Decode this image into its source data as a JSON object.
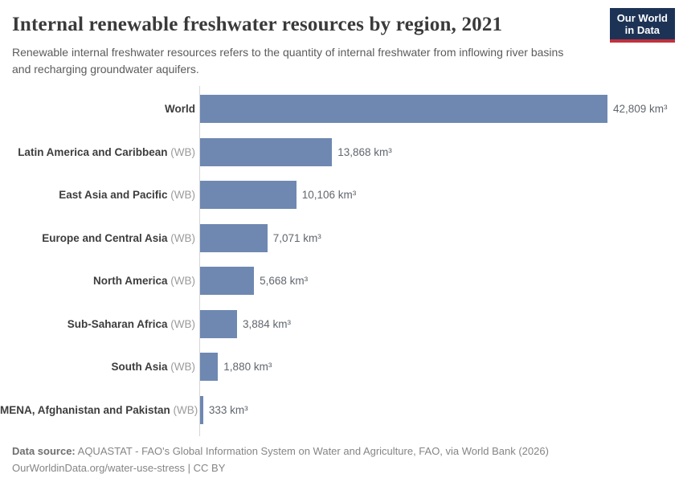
{
  "header": {
    "title": "Internal renewable freshwater resources by region, 2021",
    "subtitle": "Renewable internal freshwater resources refers to the quantity of internal freshwater from inflowing river basins and recharging groundwater aquifers.",
    "logo": {
      "line1": "Our World",
      "line2": "in Data"
    }
  },
  "chart_data": {
    "type": "bar",
    "orientation": "horizontal",
    "title": "Internal renewable freshwater resources by region, 2021",
    "unit": "km³",
    "categories": [
      "World",
      "Latin America and Caribbean",
      "East Asia and Pacific",
      "Europe and Central Asia",
      "North America",
      "Sub-Saharan Africa",
      "South Asia",
      "MENA, Afghanistan and Pakistan"
    ],
    "category_suffixes": [
      "",
      " (WB)",
      " (WB)",
      " (WB)",
      " (WB)",
      " (WB)",
      " (WB)",
      " (WB)"
    ],
    "values": [
      42809,
      13868,
      10106,
      7071,
      5668,
      3884,
      1880,
      333
    ],
    "value_labels": [
      "42,809 km³",
      "13,868 km³",
      "10,106 km³",
      "7,071 km³",
      "5,668 km³",
      "3,884 km³",
      "1,880 km³",
      "333 km³"
    ],
    "xlim": [
      0,
      42809
    ],
    "grid": false,
    "legend": false
  },
  "footer": {
    "source_label": "Data source:",
    "source_text": " AQUASTAT - FAO's Global Information System on Water and Agriculture, FAO, via World Bank (2026)",
    "citation": "OurWorldinData.org/water-use-stress | CC BY"
  },
  "colors": {
    "bar": "#6e88b1",
    "logo_navy": "#1d3356",
    "logo_red": "#c0313c",
    "axis": "#d6d6d6"
  }
}
